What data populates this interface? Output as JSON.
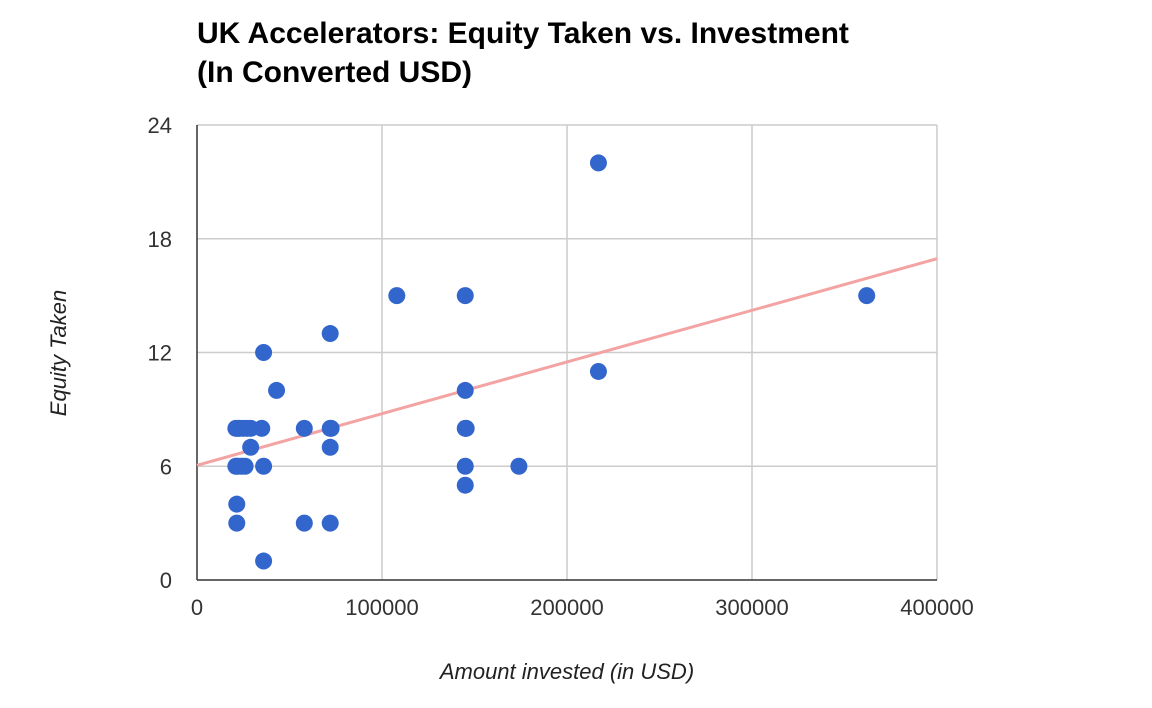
{
  "chart_data": {
    "type": "scatter",
    "title_line1": "UK Accelerators: Equity Taken vs. Investment",
    "title_line2": "(In Converted USD)",
    "xlabel": "Amount invested (in USD)",
    "ylabel": "Equity Taken",
    "xlim": [
      0,
      400000
    ],
    "ylim": [
      0,
      24
    ],
    "x_ticks": [
      0,
      100000,
      200000,
      300000,
      400000
    ],
    "y_ticks": [
      0,
      6,
      12,
      18,
      24
    ],
    "grid": true,
    "legend": "none",
    "point_color": "#3366cc",
    "trendline_color": "#f4a3a3",
    "points": [
      {
        "x": 21000,
        "y": 8
      },
      {
        "x": 22000,
        "y": 8
      },
      {
        "x": 23000,
        "y": 8
      },
      {
        "x": 25000,
        "y": 8
      },
      {
        "x": 27000,
        "y": 8
      },
      {
        "x": 29000,
        "y": 8
      },
      {
        "x": 35000,
        "y": 8
      },
      {
        "x": 58000,
        "y": 8
      },
      {
        "x": 72000,
        "y": 8
      },
      {
        "x": 72500,
        "y": 8
      },
      {
        "x": 21000,
        "y": 6
      },
      {
        "x": 22000,
        "y": 6
      },
      {
        "x": 24000,
        "y": 6
      },
      {
        "x": 26000,
        "y": 6
      },
      {
        "x": 36000,
        "y": 6
      },
      {
        "x": 29000,
        "y": 7
      },
      {
        "x": 72000,
        "y": 7
      },
      {
        "x": 21500,
        "y": 4
      },
      {
        "x": 21500,
        "y": 3
      },
      {
        "x": 58000,
        "y": 3
      },
      {
        "x": 72000,
        "y": 3
      },
      {
        "x": 36000,
        "y": 1
      },
      {
        "x": 36000,
        "y": 12
      },
      {
        "x": 43000,
        "y": 10
      },
      {
        "x": 72000,
        "y": 13
      },
      {
        "x": 108000,
        "y": 15
      },
      {
        "x": 145000,
        "y": 15
      },
      {
        "x": 145000,
        "y": 10
      },
      {
        "x": 145000,
        "y": 8
      },
      {
        "x": 145500,
        "y": 8
      },
      {
        "x": 145000,
        "y": 6
      },
      {
        "x": 174000,
        "y": 6
      },
      {
        "x": 145000,
        "y": 5
      },
      {
        "x": 217000,
        "y": 11
      },
      {
        "x": 217000,
        "y": 22
      },
      {
        "x": 362000,
        "y": 15
      }
    ],
    "trendline": {
      "x": [
        0,
        400000
      ],
      "y": [
        6.05,
        16.95
      ]
    }
  }
}
